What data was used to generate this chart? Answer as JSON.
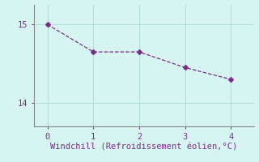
{
  "x": [
    0,
    1,
    2,
    3,
    4
  ],
  "y": [
    15.0,
    14.65,
    14.65,
    14.45,
    14.3
  ],
  "line_color": "#7b2d8b",
  "marker": "D",
  "marker_size": 3,
  "background_color": "#d6f5f0",
  "grid_color": "#b0ddd8",
  "axis_color": "#888888",
  "xlabel": "Windchill (Refroidissement éolien,°C)",
  "xlabel_color": "#7b2d8b",
  "xlabel_fontsize": 7.5,
  "tick_color": "#7b2d8b",
  "tick_fontsize": 7.5,
  "xlim": [
    -0.3,
    4.5
  ],
  "ylim": [
    13.7,
    15.25
  ],
  "yticks": [
    14,
    15
  ],
  "xticks": [
    0,
    1,
    2,
    3,
    4
  ]
}
